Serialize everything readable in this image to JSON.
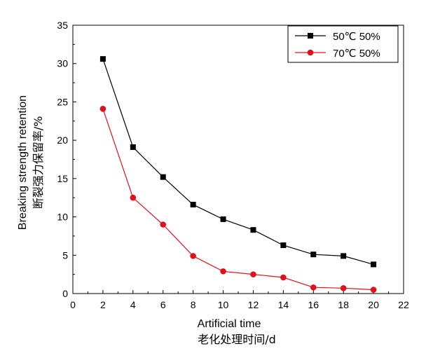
{
  "chart_data": {
    "type": "line",
    "x": [
      2,
      4,
      6,
      8,
      10,
      12,
      14,
      16,
      18,
      20
    ],
    "series": [
      {
        "name": "50℃ 50%",
        "color": "#000000",
        "marker": "square",
        "values": [
          30.6,
          19.1,
          15.2,
          11.6,
          9.7,
          8.3,
          6.3,
          5.1,
          4.9,
          3.8
        ]
      },
      {
        "name": "70℃ 50%",
        "color": "#e0101a",
        "marker": "circle",
        "values": [
          24.1,
          12.5,
          9.0,
          4.9,
          2.9,
          2.5,
          2.1,
          0.8,
          0.7,
          0.5
        ]
      }
    ],
    "xlim": [
      0,
      22
    ],
    "ylim": [
      0,
      35
    ],
    "xticks": [
      0,
      2,
      4,
      6,
      8,
      10,
      12,
      14,
      16,
      18,
      20,
      22
    ],
    "yticks": [
      0,
      5,
      10,
      15,
      20,
      25,
      30,
      35
    ],
    "xlabel": "Artificial time",
    "xlabel_cn": "老化处理时间/d",
    "ylabel": "Breaking strength retention",
    "ylabel_cn": "断裂强力保留率/%",
    "legend_position": "top-right",
    "grid": false
  }
}
